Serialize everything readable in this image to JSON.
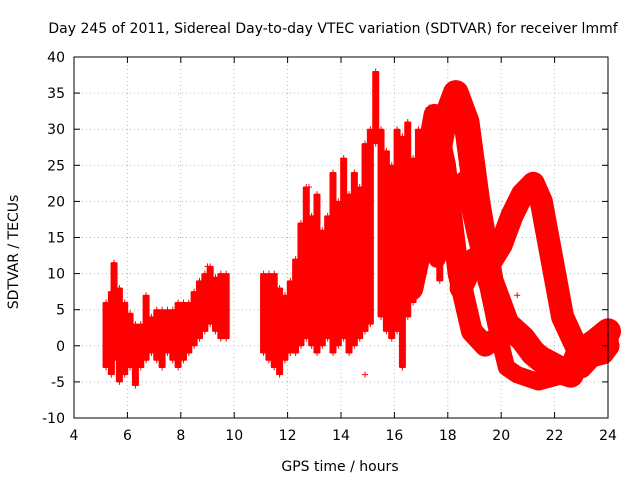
{
  "chart_data": {
    "type": "scatter",
    "title": "Day 245 of 2011, Sidereal Day-to-day VTEC variation (SDTVAR) for receiver lmmf",
    "xlabel": "GPS time / hours",
    "ylabel": "SDTVAR / TECUs",
    "xlim": [
      4,
      24
    ],
    "ylim": [
      -10,
      40
    ],
    "xticks": [
      4,
      6,
      8,
      10,
      12,
      14,
      16,
      18,
      20,
      22,
      24
    ],
    "yticks": [
      -10,
      -5,
      0,
      5,
      10,
      15,
      20,
      25,
      30,
      35,
      40
    ],
    "grid": true,
    "marker": "+",
    "color": "#ff0000",
    "series": [
      {
        "name": "SDTVAR",
        "note": "dense vertical +-marker traces; each entry is [hour, min value, max value] of a trace",
        "ranges": [
          [
            5.2,
            -3,
            6
          ],
          [
            5.4,
            -4,
            7.5
          ],
          [
            5.5,
            -2,
            11.5
          ],
          [
            5.7,
            -5,
            8
          ],
          [
            5.9,
            -4,
            6
          ],
          [
            6.1,
            -3,
            4.5
          ],
          [
            6.3,
            -5.5,
            3
          ],
          [
            6.5,
            -3,
            3
          ],
          [
            6.7,
            -2,
            7
          ],
          [
            6.9,
            -1,
            4
          ],
          [
            7.1,
            -2,
            5
          ],
          [
            7.3,
            -3,
            5
          ],
          [
            7.5,
            -1,
            5
          ],
          [
            7.7,
            -2,
            5
          ],
          [
            7.9,
            -3,
            6
          ],
          [
            8.1,
            -2,
            6
          ],
          [
            8.3,
            -1,
            6
          ],
          [
            8.5,
            0,
            7.5
          ],
          [
            8.7,
            1,
            9
          ],
          [
            8.9,
            2,
            10
          ],
          [
            9.1,
            3,
            11
          ],
          [
            9.3,
            2,
            9.5
          ],
          [
            9.5,
            1,
            10
          ],
          [
            9.7,
            1,
            10
          ],
          [
            11.1,
            -1,
            10
          ],
          [
            11.3,
            -2,
            10
          ],
          [
            11.5,
            -3,
            10
          ],
          [
            11.7,
            -4,
            8
          ],
          [
            11.9,
            -2,
            7
          ],
          [
            12.1,
            -1,
            9
          ],
          [
            12.3,
            -1,
            12
          ],
          [
            12.5,
            0,
            17
          ],
          [
            12.7,
            1,
            22
          ],
          [
            12.9,
            0,
            18
          ],
          [
            13.1,
            -1,
            21
          ],
          [
            13.3,
            0,
            16
          ],
          [
            13.5,
            1,
            18
          ],
          [
            13.7,
            -1,
            24
          ],
          [
            13.9,
            0,
            20
          ],
          [
            14.1,
            1,
            26
          ],
          [
            14.3,
            -1,
            21
          ],
          [
            14.5,
            0,
            24
          ],
          [
            14.7,
            1,
            22
          ],
          [
            14.9,
            2,
            28
          ],
          [
            15.1,
            3,
            30
          ],
          [
            15.3,
            28,
            38
          ],
          [
            15.5,
            4,
            30
          ],
          [
            15.7,
            2,
            27
          ],
          [
            15.9,
            1,
            25
          ],
          [
            16.1,
            2,
            30
          ],
          [
            16.3,
            -3,
            29
          ],
          [
            16.5,
            4,
            31
          ],
          [
            16.7,
            6,
            26
          ],
          [
            16.9,
            8,
            30
          ],
          [
            17.1,
            10,
            30
          ],
          [
            17.3,
            14,
            33
          ],
          [
            17.5,
            12,
            30
          ],
          [
            17.7,
            9,
            27
          ]
        ],
        "bands": [
          {
            "points": [
              [
                17.0,
                22
              ],
              [
                17.5,
                32
              ],
              [
                17.9,
                25
              ],
              [
                18.4,
                10
              ],
              [
                18.9,
                2
              ],
              [
                19.4,
                0
              ],
              [
                20.0,
                1.5
              ],
              [
                20.5,
                2
              ],
              [
                21.0,
                0
              ],
              [
                21.5,
                -1.5
              ],
              [
                22.0,
                -2.5
              ],
              [
                22.5,
                -3.5
              ],
              [
                23.0,
                -3
              ],
              [
                23.5,
                -1
              ],
              [
                24.0,
                1
              ]
            ],
            "half_width": 1.5
          },
          {
            "points": [
              [
                16.6,
                8
              ],
              [
                17.3,
                20
              ],
              [
                17.8,
                30
              ],
              [
                18.3,
                35
              ],
              [
                18.7,
                31
              ],
              [
                19.1,
                20
              ],
              [
                19.6,
                9
              ],
              [
                20.2,
                3
              ],
              [
                20.8,
                1
              ],
              [
                21.2,
                -1
              ],
              [
                21.7,
                -2.5
              ],
              [
                22.2,
                -3.5
              ],
              [
                22.6,
                -4
              ],
              [
                22.9,
                -1
              ],
              [
                23.5,
                0.5
              ],
              [
                24.0,
                2
              ]
            ],
            "half_width": 1.8
          },
          {
            "points": [
              [
                17.6,
                12
              ],
              [
                18.1,
                20
              ],
              [
                18.6,
                23
              ],
              [
                19.0,
                16
              ],
              [
                19.4,
                10
              ],
              [
                19.8,
                3
              ],
              [
                20.2,
                -3
              ],
              [
                20.6,
                -4
              ],
              [
                21.0,
                -4.5
              ],
              [
                21.4,
                -5
              ],
              [
                21.9,
                -4.5
              ],
              [
                22.4,
                -4
              ],
              [
                22.8,
                -3.5
              ]
            ],
            "half_width": 1.2
          },
          {
            "points": [
              [
                18.5,
                8
              ],
              [
                19.0,
                12
              ],
              [
                19.5,
                11
              ],
              [
                20.0,
                14
              ],
              [
                20.4,
                18
              ],
              [
                20.8,
                21
              ],
              [
                21.2,
                22.5
              ],
              [
                21.5,
                20
              ],
              [
                21.9,
                12
              ],
              [
                22.3,
                4
              ],
              [
                22.8,
                0
              ],
              [
                23.3,
                -1.5
              ],
              [
                23.8,
                -1
              ],
              [
                24.0,
                0
              ]
            ],
            "half_width": 1.6
          }
        ],
        "outliers": [
          [
            14.9,
            -4
          ],
          [
            20.6,
            7
          ],
          [
            5.5,
            11.5
          ],
          [
            9.0,
            11
          ],
          [
            12.8,
            22
          ]
        ]
      }
    ]
  }
}
